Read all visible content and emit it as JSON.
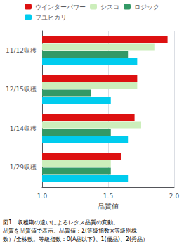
{
  "chart_data": {
    "type": "bar",
    "orientation": "horizontal",
    "categories": [
      "11/12収穫",
      "12/15収穫",
      "1/14収穫",
      "1/29収穫"
    ],
    "series": [
      {
        "name": "ウインターパワー",
        "color": "#dd1111",
        "values": [
          1.95,
          1.72,
          1.7,
          1.6
        ]
      },
      {
        "name": "シスコ",
        "color": "#cceebb",
        "values": [
          1.85,
          1.72,
          1.75,
          1.52
        ]
      },
      {
        "name": "ロジック",
        "color": "#339966",
        "values": [
          1.65,
          1.37,
          1.52,
          1.52
        ]
      },
      {
        "name": "フユヒカリ",
        "color": "#00ccee",
        "values": [
          1.72,
          1.52,
          1.65,
          1.65
        ]
      }
    ],
    "xlabel": "品質値",
    "xlim": [
      1.0,
      2.0
    ],
    "xticks": [
      {
        "value": 1.0,
        "label": "1.0"
      },
      1.5,
      {
        "value": 2.0,
        "label": "2.0"
      }
    ],
    "grid": true,
    "legend": "top",
    "annotations": [
      "図1　収穫期の違いによるレタス品質の変動。",
      "品質を品質値で表示。品質値：Σ(等級指数×等級別株",
      "数）/全株数。等級指数：0(A品以下)、1(優品)、2(秀品）"
    ]
  }
}
